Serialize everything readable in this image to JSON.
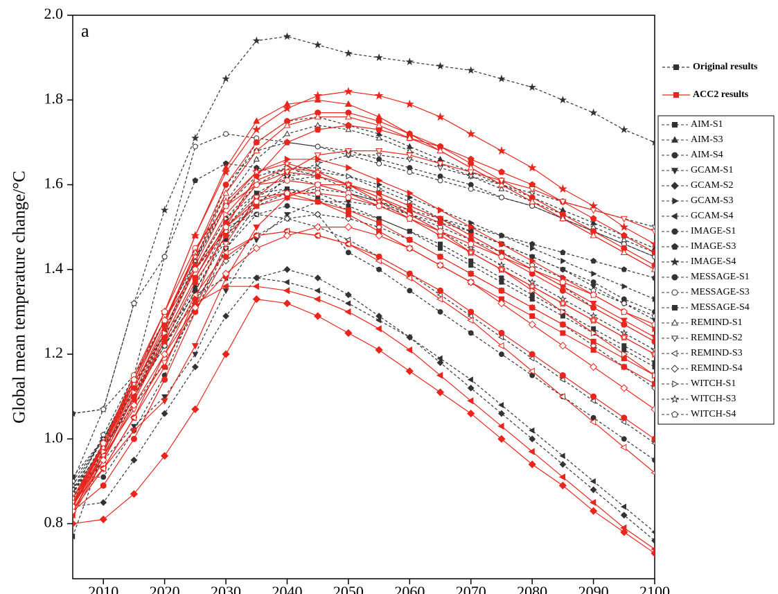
{
  "chart_data": {
    "type": "line",
    "annotation": "a",
    "ylabel": "Global mean temperature change/°C",
    "xlim": [
      2005,
      2100
    ],
    "xticks": [
      2010,
      2020,
      2030,
      2040,
      2050,
      2060,
      2070,
      2080,
      2090,
      2100
    ],
    "ylim": [
      0.67,
      2.0
    ],
    "yticks": [
      0.8,
      {
        "value": 1.0,
        "label": "1.0"
      },
      1.2,
      1.4,
      1.6,
      1.8,
      {
        "value": 2.0,
        "label": "2.0"
      }
    ],
    "result_styles": [
      {
        "name": "Original results",
        "color": "#333333",
        "dashed": true
      },
      {
        "name": "ACC2 results",
        "color": "#e8261e",
        "dashed": false
      }
    ],
    "x": [
      2005,
      2010,
      2015,
      2020,
      2025,
      2030,
      2035,
      2040,
      2045,
      2050,
      2055,
      2060,
      2065,
      2070,
      2075,
      2080,
      2085,
      2090,
      2095,
      2100
    ],
    "series": [
      {
        "name": "AIM-S1",
        "marker": "square",
        "filled": true,
        "values": [
          0.87,
          0.98,
          1.1,
          1.22,
          1.35,
          1.47,
          1.56,
          1.59,
          1.58,
          1.55,
          1.52,
          1.49,
          1.45,
          1.41,
          1.37,
          1.33,
          1.29,
          1.25,
          1.21,
          1.17
        ],
        "acc2_values": [
          0.83,
          0.96,
          1.1,
          1.24,
          1.38,
          1.5,
          1.57,
          1.58,
          1.56,
          1.53,
          1.49,
          1.45,
          1.41,
          1.37,
          1.33,
          1.29,
          1.25,
          1.21,
          1.17,
          1.13
        ]
      },
      {
        "name": "AIM-S3",
        "marker": "triangle-up",
        "filled": true,
        "values": [
          0.86,
          0.99,
          1.12,
          1.25,
          1.42,
          1.58,
          1.7,
          1.75,
          1.76,
          1.74,
          1.72,
          1.69,
          1.66,
          1.63,
          1.6,
          1.57,
          1.54,
          1.51,
          1.48,
          1.45
        ],
        "acc2_values": [
          0.84,
          0.98,
          1.14,
          1.3,
          1.48,
          1.64,
          1.75,
          1.79,
          1.8,
          1.79,
          1.76,
          1.72,
          1.68,
          1.64,
          1.6,
          1.56,
          1.52,
          1.48,
          1.44,
          1.4
        ]
      },
      {
        "name": "AIM-S4",
        "marker": "circle",
        "filled": true,
        "values": [
          0.86,
          0.97,
          1.1,
          1.22,
          1.35,
          1.48,
          1.57,
          1.61,
          1.62,
          1.6,
          1.58,
          1.55,
          1.52,
          1.49,
          1.46,
          1.43,
          1.4,
          1.37,
          1.33,
          1.3
        ],
        "acc2_values": [
          0.84,
          0.96,
          1.1,
          1.24,
          1.38,
          1.51,
          1.6,
          1.63,
          1.62,
          1.6,
          1.57,
          1.54,
          1.51,
          1.47,
          1.43,
          1.39,
          1.35,
          1.31,
          1.27,
          1.23
        ]
      },
      {
        "name": "GCAM-S1",
        "marker": "triangle-down",
        "filled": true,
        "values": [
          0.85,
          0.95,
          1.03,
          1.1,
          1.2,
          1.35,
          1.47,
          1.53,
          1.56,
          1.56,
          1.55,
          1.53,
          1.51,
          1.49,
          1.46,
          1.43,
          1.4,
          1.36,
          1.32,
          1.28
        ],
        "acc2_values": [
          0.83,
          0.93,
          1.02,
          1.09,
          1.22,
          1.38,
          1.5,
          1.57,
          1.6,
          1.6,
          1.58,
          1.55,
          1.52,
          1.48,
          1.44,
          1.4,
          1.36,
          1.32,
          1.28,
          1.24
        ]
      },
      {
        "name": "GCAM-S2",
        "marker": "diamond",
        "filled": true,
        "values": [
          0.84,
          0.85,
          0.95,
          1.06,
          1.17,
          1.29,
          1.38,
          1.4,
          1.38,
          1.34,
          1.29,
          1.24,
          1.18,
          1.12,
          1.06,
          1.0,
          0.94,
          0.88,
          0.82,
          0.76
        ],
        "acc2_values": [
          0.8,
          0.81,
          0.87,
          0.96,
          1.07,
          1.2,
          1.33,
          1.32,
          1.29,
          1.25,
          1.21,
          1.16,
          1.11,
          1.06,
          1.0,
          0.94,
          0.89,
          0.83,
          0.78,
          0.73
        ]
      },
      {
        "name": "GCAM-S3",
        "marker": "triangle-right",
        "filled": true,
        "values": [
          0.9,
          1.0,
          1.11,
          1.23,
          1.36,
          1.5,
          1.58,
          1.62,
          1.63,
          1.62,
          1.6,
          1.57,
          1.54,
          1.51,
          1.48,
          1.45,
          1.42,
          1.39,
          1.36,
          1.33
        ],
        "acc2_values": [
          0.86,
          0.98,
          1.12,
          1.26,
          1.41,
          1.55,
          1.63,
          1.66,
          1.66,
          1.64,
          1.61,
          1.58,
          1.54,
          1.5,
          1.46,
          1.42,
          1.38,
          1.34,
          1.3,
          1.26
        ]
      },
      {
        "name": "GCAM-S4",
        "marker": "triangle-left",
        "filled": true,
        "values": [
          0.77,
          0.97,
          1.1,
          1.25,
          1.34,
          1.38,
          1.38,
          1.37,
          1.35,
          1.32,
          1.28,
          1.24,
          1.19,
          1.14,
          1.08,
          1.02,
          0.96,
          0.9,
          0.84,
          0.78
        ],
        "acc2_values": [
          0.82,
          0.95,
          1.09,
          1.23,
          1.32,
          1.36,
          1.36,
          1.35,
          1.33,
          1.3,
          1.26,
          1.21,
          1.15,
          1.09,
          1.03,
          0.97,
          0.91,
          0.85,
          0.79,
          0.74
        ]
      },
      {
        "name": "IMAGE-S1",
        "marker": "circle",
        "filled": true,
        "values": [
          0.91,
          0.91,
          1.02,
          1.15,
          1.32,
          1.45,
          1.53,
          1.55,
          1.53,
          1.44,
          1.4,
          1.35,
          1.3,
          1.25,
          1.2,
          1.15,
          1.1,
          1.05,
          1.0,
          0.95
        ],
        "acc2_values": [
          0.83,
          0.89,
          1.0,
          1.14,
          1.3,
          1.43,
          1.48,
          1.49,
          1.48,
          1.46,
          1.43,
          1.39,
          1.35,
          1.3,
          1.25,
          1.2,
          1.15,
          1.1,
          1.05,
          1.0
        ]
      },
      {
        "name": "IMAGE-S3",
        "marker": "pentagon",
        "filled": true,
        "values": [
          1.06,
          1.07,
          1.15,
          1.43,
          1.61,
          1.65,
          1.64,
          1.62,
          1.6,
          1.58,
          1.56,
          1.54,
          1.52,
          1.5,
          1.48,
          1.46,
          1.44,
          1.42,
          1.4,
          1.38
        ],
        "acc2_values": [
          0.85,
          0.93,
          1.05,
          1.17,
          1.33,
          1.5,
          1.62,
          1.7,
          1.73,
          1.74,
          1.73,
          1.71,
          1.69,
          1.66,
          1.63,
          1.6,
          1.56,
          1.52,
          1.48,
          1.44
        ]
      },
      {
        "name": "IMAGE-S4",
        "marker": "star",
        "filled": true,
        "values": [
          1.06,
          1.07,
          1.32,
          1.54,
          1.71,
          1.85,
          1.94,
          1.95,
          1.93,
          1.91,
          1.9,
          1.89,
          1.88,
          1.87,
          1.85,
          1.83,
          1.8,
          1.77,
          1.73,
          1.7
        ],
        "acc2_values": [
          0.86,
          0.98,
          1.14,
          1.3,
          1.48,
          1.63,
          1.73,
          1.78,
          1.81,
          1.82,
          1.81,
          1.79,
          1.76,
          1.72,
          1.68,
          1.64,
          1.59,
          1.55,
          1.5,
          1.46
        ]
      },
      {
        "name": "MESSAGE-S1",
        "marker": "circle",
        "filled": true,
        "values": [
          0.86,
          0.98,
          1.12,
          1.25,
          1.42,
          1.6,
          1.68,
          1.7,
          1.69,
          1.68,
          1.66,
          1.64,
          1.62,
          1.6,
          1.57,
          1.55,
          1.52,
          1.49,
          1.46,
          1.43
        ],
        "acc2_values": [
          0.84,
          0.97,
          1.12,
          1.27,
          1.44,
          1.6,
          1.7,
          1.75,
          1.77,
          1.77,
          1.75,
          1.72,
          1.69,
          1.65,
          1.61,
          1.57,
          1.53,
          1.49,
          1.45,
          1.41
        ]
      },
      {
        "name": "MESSAGE-S3",
        "marker": "circle",
        "filled": false,
        "values": [
          0.9,
          1.07,
          1.32,
          1.43,
          1.69,
          1.72,
          1.71,
          1.7,
          1.69,
          1.67,
          1.65,
          1.63,
          1.61,
          1.59,
          1.57,
          1.55,
          1.52,
          1.49,
          1.46,
          1.43
        ],
        "acc2_values": [
          0.85,
          0.99,
          1.15,
          1.3,
          1.45,
          1.55,
          1.6,
          1.61,
          1.6,
          1.58,
          1.55,
          1.52,
          1.48,
          1.44,
          1.4,
          1.36,
          1.32,
          1.28,
          1.24,
          1.2
        ]
      },
      {
        "name": "MESSAGE-S4",
        "marker": "square",
        "filled": true,
        "values": [
          0.91,
          1.0,
          1.13,
          1.25,
          1.4,
          1.52,
          1.58,
          1.59,
          1.57,
          1.54,
          1.52,
          1.49,
          1.46,
          1.42,
          1.38,
          1.34,
          1.3,
          1.26,
          1.22,
          1.18
        ],
        "acc2_values": [
          0.84,
          0.96,
          1.1,
          1.23,
          1.37,
          1.48,
          1.55,
          1.57,
          1.56,
          1.54,
          1.51,
          1.47,
          1.43,
          1.39,
          1.35,
          1.31,
          1.27,
          1.23,
          1.19,
          1.15
        ]
      },
      {
        "name": "REMIND-S1",
        "marker": "triangle-up",
        "filled": false,
        "values": [
          0.88,
          1.0,
          1.14,
          1.28,
          1.42,
          1.56,
          1.66,
          1.72,
          1.74,
          1.73,
          1.71,
          1.68,
          1.65,
          1.62,
          1.59,
          1.56,
          1.53,
          1.5,
          1.47,
          1.44
        ],
        "acc2_values": [
          0.85,
          0.98,
          1.13,
          1.28,
          1.44,
          1.58,
          1.68,
          1.74,
          1.76,
          1.76,
          1.74,
          1.71,
          1.68,
          1.64,
          1.6,
          1.56,
          1.52,
          1.48,
          1.44,
          1.4
        ]
      },
      {
        "name": "REMIND-S2",
        "marker": "triangle-down",
        "filled": false,
        "values": [
          0.88,
          0.98,
          1.08,
          1.18,
          1.3,
          1.45,
          1.55,
          1.62,
          1.65,
          1.67,
          1.67,
          1.66,
          1.64,
          1.62,
          1.6,
          1.58,
          1.56,
          1.54,
          1.52,
          1.5
        ],
        "acc2_values": [
          0.85,
          0.96,
          1.07,
          1.18,
          1.31,
          1.46,
          1.57,
          1.63,
          1.67,
          1.68,
          1.68,
          1.67,
          1.65,
          1.63,
          1.61,
          1.59,
          1.56,
          1.54,
          1.52,
          1.49
        ]
      },
      {
        "name": "REMIND-S3",
        "marker": "triangle-left",
        "filled": false,
        "values": [
          0.86,
          0.96,
          1.1,
          1.25,
          1.4,
          1.5,
          1.53,
          1.52,
          1.5,
          1.47,
          1.43,
          1.39,
          1.34,
          1.29,
          1.24,
          1.19,
          1.14,
          1.09,
          1.04,
          0.99
        ],
        "acc2_values": [
          0.83,
          0.93,
          1.05,
          1.2,
          1.34,
          1.44,
          1.48,
          1.49,
          1.48,
          1.46,
          1.42,
          1.38,
          1.33,
          1.28,
          1.22,
          1.16,
          1.1,
          1.04,
          0.98,
          0.92
        ]
      },
      {
        "name": "REMIND-S4",
        "marker": "diamond",
        "filled": false,
        "values": [
          0.86,
          0.97,
          1.1,
          1.22,
          1.33,
          1.42,
          1.48,
          1.52,
          1.53,
          1.52,
          1.5,
          1.47,
          1.43,
          1.39,
          1.35,
          1.31,
          1.27,
          1.22,
          1.17,
          1.12
        ],
        "acc2_values": [
          0.83,
          0.95,
          1.08,
          1.2,
          1.31,
          1.39,
          1.45,
          1.48,
          1.5,
          1.5,
          1.48,
          1.45,
          1.41,
          1.37,
          1.32,
          1.27,
          1.22,
          1.17,
          1.12,
          1.07
        ]
      },
      {
        "name": "WITCH-S1",
        "marker": "triangle-right",
        "filled": false,
        "values": [
          0.87,
          0.99,
          1.12,
          1.26,
          1.4,
          1.52,
          1.6,
          1.64,
          1.64,
          1.62,
          1.59,
          1.56,
          1.52,
          1.48,
          1.44,
          1.4,
          1.36,
          1.31,
          1.27,
          1.23
        ],
        "acc2_values": [
          0.84,
          0.97,
          1.11,
          1.25,
          1.4,
          1.53,
          1.61,
          1.64,
          1.63,
          1.6,
          1.57,
          1.53,
          1.49,
          1.44,
          1.4,
          1.35,
          1.3,
          1.25,
          1.2,
          1.15
        ]
      },
      {
        "name": "WITCH-S3",
        "marker": "star",
        "filled": false,
        "values": [
          0.89,
          1.0,
          1.14,
          1.28,
          1.42,
          1.55,
          1.62,
          1.64,
          1.62,
          1.59,
          1.56,
          1.53,
          1.49,
          1.45,
          1.41,
          1.37,
          1.33,
          1.29,
          1.25,
          1.21
        ],
        "acc2_values": [
          0.86,
          0.99,
          1.13,
          1.28,
          1.43,
          1.56,
          1.63,
          1.65,
          1.63,
          1.6,
          1.56,
          1.52,
          1.48,
          1.44,
          1.4,
          1.36,
          1.32,
          1.28,
          1.24,
          1.2
        ]
      },
      {
        "name": "WITCH-S4",
        "marker": "pentagon",
        "filled": false,
        "values": [
          0.87,
          1.01,
          1.15,
          1.28,
          1.4,
          1.49,
          1.55,
          1.58,
          1.59,
          1.58,
          1.56,
          1.53,
          1.5,
          1.47,
          1.44,
          1.41,
          1.38,
          1.35,
          1.32,
          1.29
        ],
        "acc2_values": [
          0.84,
          0.99,
          1.14,
          1.28,
          1.4,
          1.5,
          1.56,
          1.58,
          1.58,
          1.57,
          1.55,
          1.52,
          1.49,
          1.46,
          1.43,
          1.4,
          1.37,
          1.34,
          1.3,
          1.27
        ]
      }
    ]
  }
}
